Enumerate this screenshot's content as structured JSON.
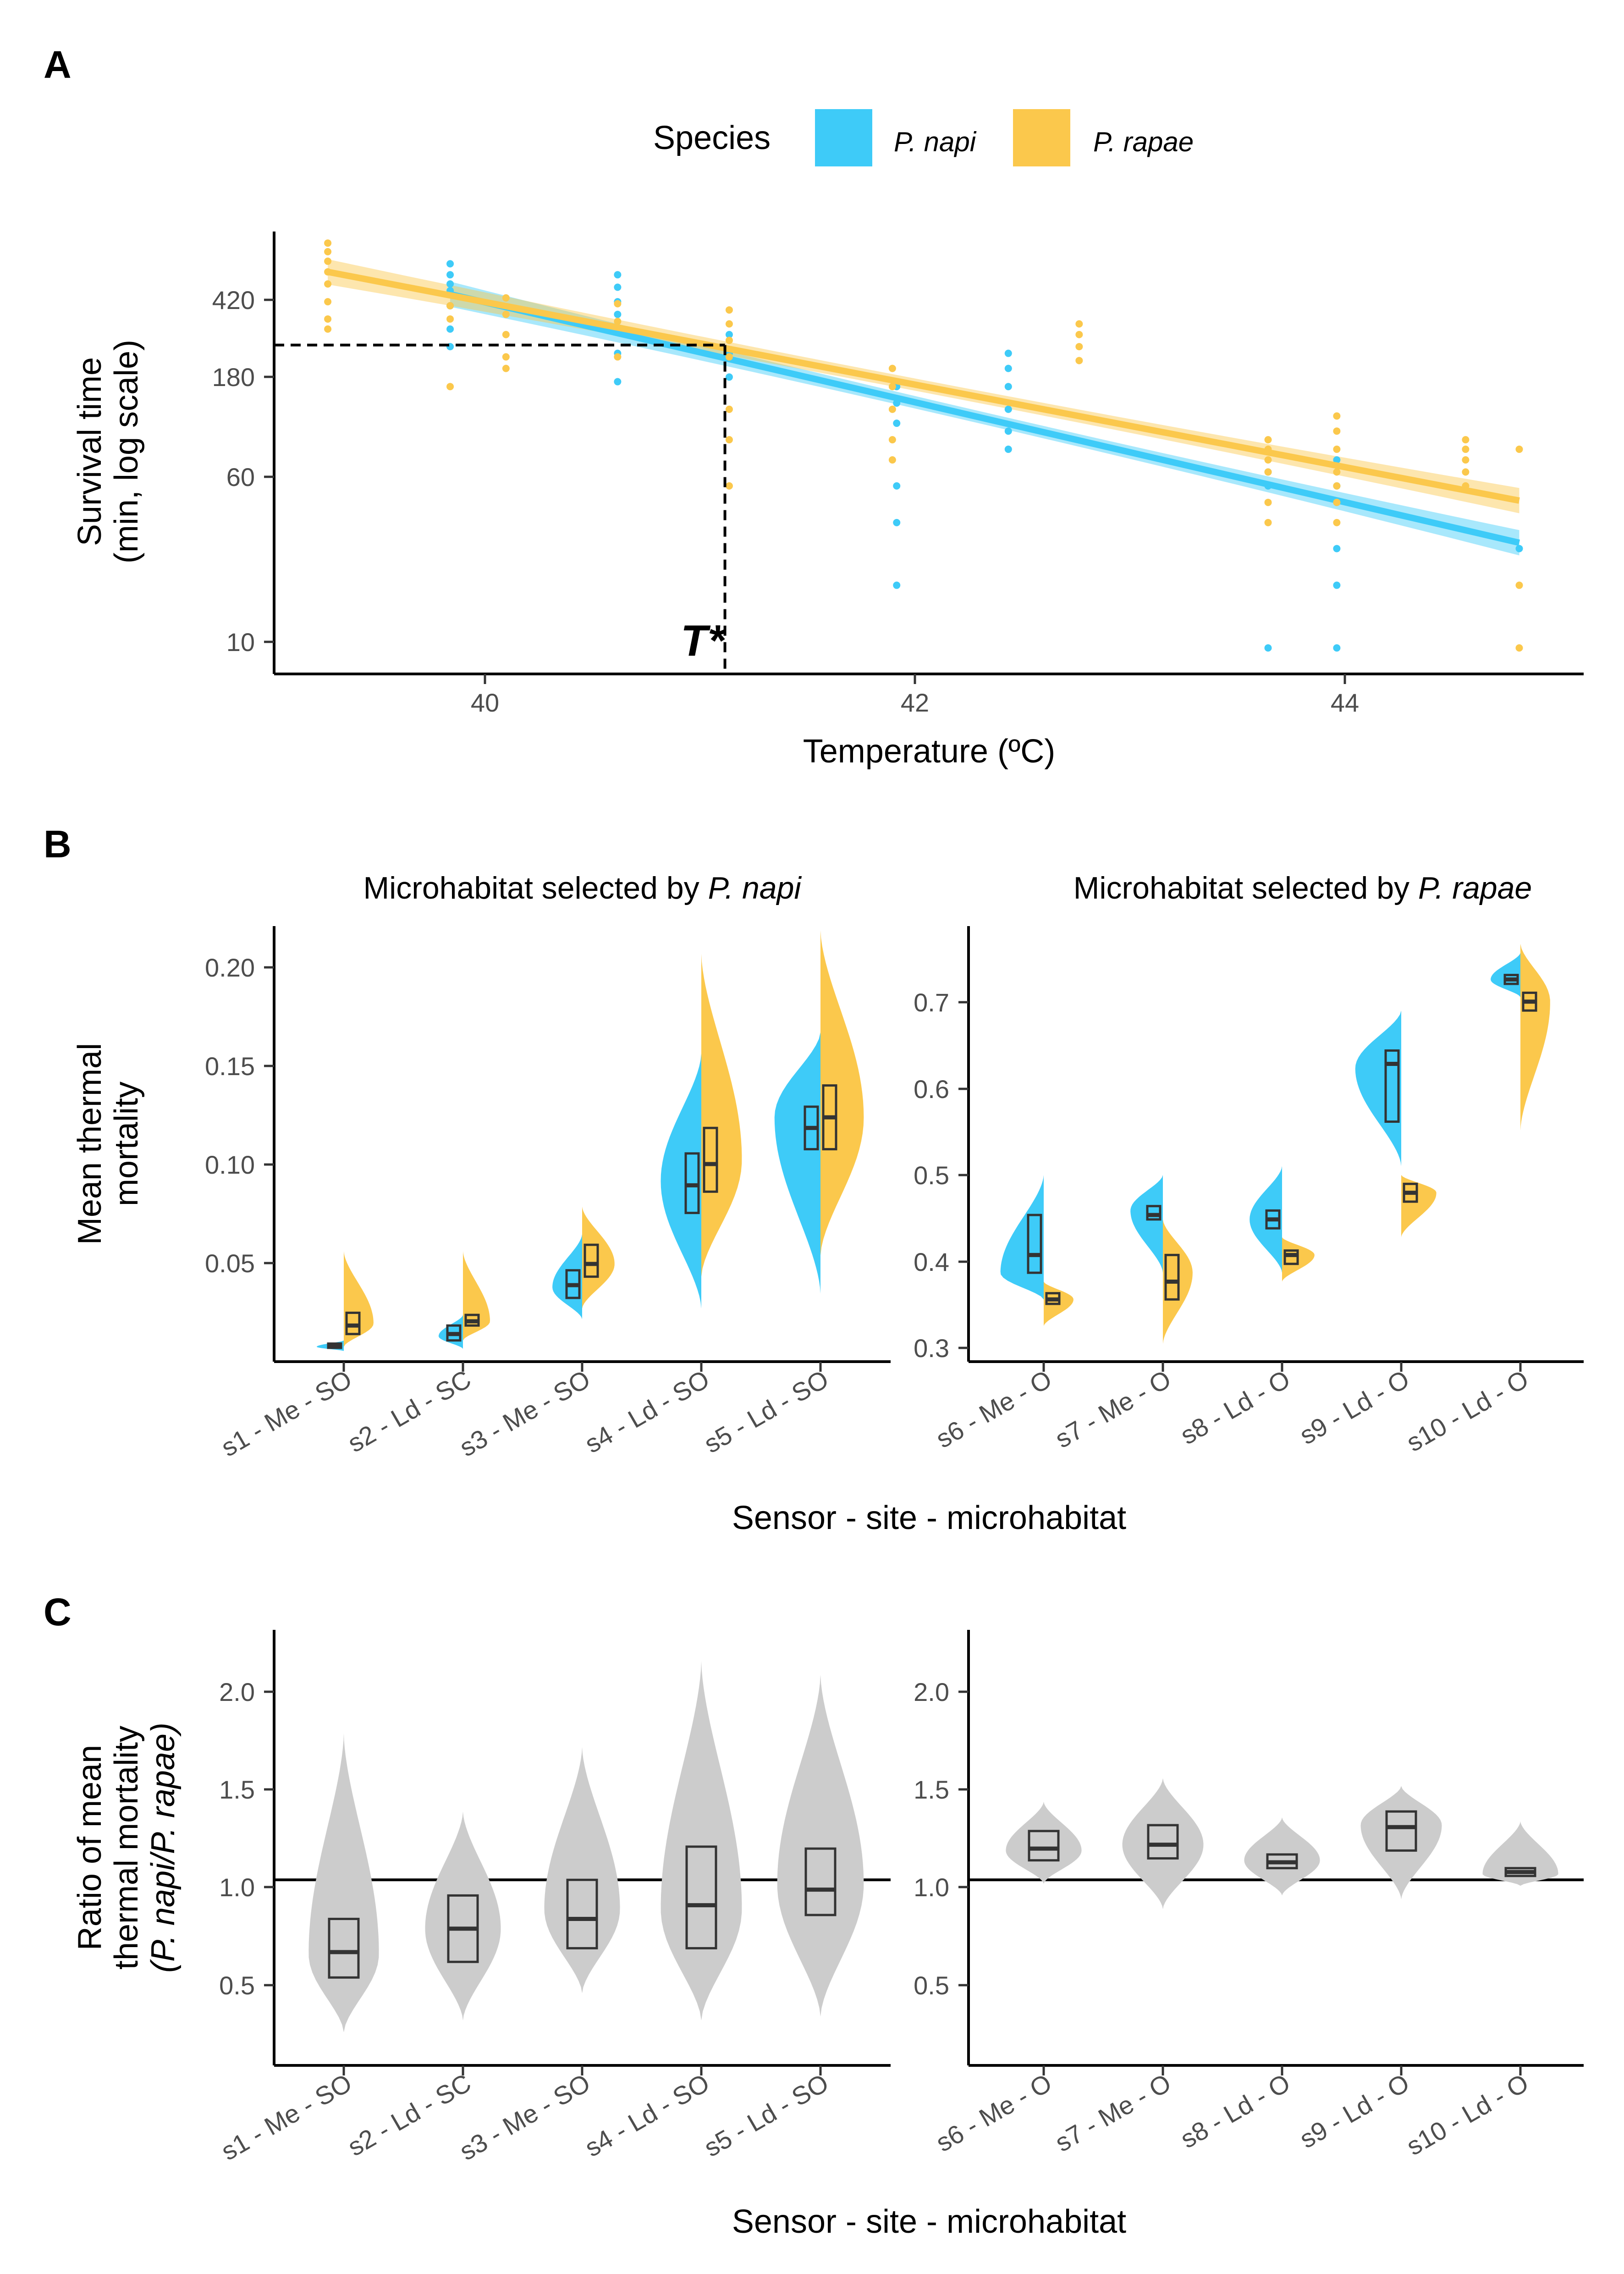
{
  "colors": {
    "napi": "#3ecbf8",
    "rapae": "#fbc84c",
    "ratio": "#cccccc",
    "box": "#333333"
  },
  "panels": {
    "a": "A",
    "b": "B",
    "c": "C"
  },
  "legend": {
    "title": "Species",
    "items": [
      "P. napi",
      "P. rapae"
    ]
  },
  "panelA": {
    "xlabel": "Temperature (ºC)",
    "ylabel_line1": "Survival time",
    "ylabel_line2": "(min, log scale)",
    "tstar": "T*",
    "x_ticks": [
      "40",
      "42",
      "44"
    ],
    "y_ticks": [
      "10",
      "60",
      "180",
      "420"
    ]
  },
  "panelB": {
    "strip_left_prefix": "Microhabitat selected by ",
    "strip_left_species": "P. napi",
    "strip_right_prefix": "Microhabitat selected by ",
    "strip_right_species": "P. rapae",
    "ylabel_line1": "Mean thermal",
    "ylabel_line2": "mortality",
    "xlabel": "Sensor - site - microhabitat",
    "left_y_ticks": [
      "0.05",
      "0.10",
      "0.15",
      "0.20"
    ],
    "right_y_ticks": [
      "0.3",
      "0.4",
      "0.5",
      "0.6",
      "0.7"
    ]
  },
  "panelC": {
    "ylabel_line1": "Ratio of mean",
    "ylabel_line2": "thermal mortality",
    "ylabel_line3": "(P. napi/P. rapae)",
    "xlabel": "Sensor - site - microhabitat",
    "y_ticks": [
      "0.5",
      "1.0",
      "1.5",
      "2.0"
    ]
  },
  "sensors_left": [
    "s1 - Me - SO",
    "s2 - Ld - SC",
    "s3 - Me - SO",
    "s4 - Ld - SO",
    "s5 - Ld - SO"
  ],
  "sensors_right": [
    "s6 - Me - O",
    "s7 - Me - O",
    "s8 - Ld - O",
    "s9 - Ld - O",
    "s10 - Ld - O"
  ],
  "chart_data": [
    {
      "panel": "A",
      "type": "scatter",
      "xlabel": "Temperature (ºC)",
      "ylabel": "Survival time (min, log scale)",
      "y_scale": "log",
      "xlim": [
        39.1,
        45.2
      ],
      "ylim": [
        7.5,
        1000
      ],
      "x_ticks": [
        40,
        42,
        44
      ],
      "y_ticks": [
        10,
        60,
        180,
        420
      ],
      "threshold": {
        "label": "T*",
        "x": 41.2,
        "y": 285
      },
      "series": [
        {
          "name": "P. napi",
          "fit": {
            "x": [
              39.92,
              44.9
            ],
            "y": [
              500,
              32
            ]
          },
          "points": [
            [
              39.92,
              700
            ],
            [
              39.92,
              620
            ],
            [
              39.92,
              560
            ],
            [
              39.92,
              520
            ],
            [
              39.92,
              440
            ],
            [
              39.92,
              340
            ],
            [
              39.92,
              280
            ],
            [
              40.7,
              620
            ],
            [
              40.7,
              540
            ],
            [
              40.7,
              460
            ],
            [
              40.7,
              400
            ],
            [
              40.7,
              330
            ],
            [
              40.7,
              260
            ],
            [
              40.7,
              190
            ],
            [
              41.22,
              320
            ],
            [
              41.22,
              260
            ],
            [
              41.22,
              200
            ],
            [
              42.0,
              180
            ],
            [
              42.0,
              150
            ],
            [
              42.0,
              120
            ],
            [
              42.0,
              60
            ],
            [
              42.0,
              40
            ],
            [
              42.0,
              20
            ],
            [
              42.52,
              260
            ],
            [
              42.52,
              220
            ],
            [
              42.52,
              180
            ],
            [
              42.52,
              140
            ],
            [
              42.52,
              110
            ],
            [
              42.52,
              90
            ],
            [
              43.73,
              70
            ],
            [
              43.73,
              60
            ],
            [
              43.73,
              10
            ],
            [
              44.05,
              80
            ],
            [
              44.05,
              60
            ],
            [
              44.05,
              50
            ],
            [
              44.05,
              30
            ],
            [
              44.05,
              20
            ],
            [
              44.05,
              10
            ],
            [
              44.9,
              30
            ]
          ]
        },
        {
          "name": "P. rapae",
          "fit": {
            "x": [
              39.35,
              44.9
            ],
            "y": [
              640,
              51
            ]
          },
          "points": [
            [
              39.35,
              880
            ],
            [
              39.35,
              800
            ],
            [
              39.35,
              720
            ],
            [
              39.35,
              640
            ],
            [
              39.35,
              560
            ],
            [
              39.35,
              460
            ],
            [
              39.35,
              380
            ],
            [
              39.35,
              340
            ],
            [
              39.92,
              440
            ],
            [
              39.92,
              380
            ],
            [
              39.92,
              180
            ],
            [
              40.18,
              480
            ],
            [
              40.18,
              400
            ],
            [
              40.18,
              320
            ],
            [
              40.18,
              250
            ],
            [
              40.18,
              220
            ],
            [
              40.7,
              450
            ],
            [
              40.7,
              370
            ],
            [
              40.7,
              250
            ],
            [
              41.22,
              420
            ],
            [
              41.22,
              360
            ],
            [
              41.22,
              300
            ],
            [
              41.22,
              250
            ],
            [
              41.22,
              140
            ],
            [
              41.22,
              100
            ],
            [
              41.22,
              60
            ],
            [
              41.98,
              220
            ],
            [
              41.98,
              180
            ],
            [
              41.98,
              140
            ],
            [
              41.98,
              100
            ],
            [
              41.98,
              80
            ],
            [
              42.85,
              360
            ],
            [
              42.85,
              320
            ],
            [
              42.85,
              280
            ],
            [
              42.85,
              240
            ],
            [
              43.73,
              100
            ],
            [
              43.73,
              90
            ],
            [
              43.73,
              80
            ],
            [
              43.73,
              70
            ],
            [
              43.73,
              50
            ],
            [
              43.73,
              40
            ],
            [
              44.05,
              130
            ],
            [
              44.05,
              110
            ],
            [
              44.05,
              90
            ],
            [
              44.05,
              70
            ],
            [
              44.05,
              60
            ],
            [
              44.05,
              50
            ],
            [
              44.05,
              40
            ],
            [
              44.65,
              100
            ],
            [
              44.65,
              90
            ],
            [
              44.65,
              80
            ],
            [
              44.65,
              70
            ],
            [
              44.65,
              60
            ],
            [
              44.9,
              90
            ],
            [
              44.9,
              20
            ],
            [
              44.9,
              10
            ]
          ]
        }
      ]
    },
    {
      "panel": "B-left",
      "type": "violin",
      "title": "Microhabitat selected by P. napi",
      "xlabel": "Sensor - site - microhabitat",
      "ylabel": "Mean thermal mortality",
      "ylim": [
        0.01,
        0.215
      ],
      "y_ticks": [
        0.05,
        0.1,
        0.15,
        0.2
      ],
      "categories": [
        "s1 - Me - SO",
        "s2 - Ld - SC",
        "s3 - Me - SO",
        "s4 - Ld - SO",
        "s5 - Ld - SO"
      ],
      "series": [
        {
          "name": "P. napi",
          "side": "left",
          "ranges": [
            [
              0.015,
              0.02
            ],
            [
              0.016,
              0.032
            ],
            [
              0.03,
              0.07
            ],
            [
              0.035,
              0.155
            ],
            [
              0.042,
              0.165
            ]
          ],
          "modes": [
            0.017,
            0.022,
            0.045,
            0.095,
            0.125
          ],
          "widths": [
            0.5,
            0.45,
            0.55,
            0.75,
            0.85
          ],
          "q1": [
            0.0165,
            0.02,
            0.04,
            0.08,
            0.11
          ],
          "median": [
            0.017,
            0.023,
            0.046,
            0.093,
            0.12
          ],
          "q3": [
            0.0185,
            0.027,
            0.053,
            0.108,
            0.13
          ]
        },
        {
          "name": "P. rapae",
          "side": "right",
          "ranges": [
            [
              0.017,
              0.062
            ],
            [
              0.02,
              0.062
            ],
            [
              0.035,
              0.083
            ],
            [
              0.05,
              0.202
            ],
            [
              0.06,
              0.213
            ]
          ],
          "modes": [
            0.028,
            0.029,
            0.056,
            0.105,
            0.125
          ],
          "widths": [
            0.55,
            0.5,
            0.6,
            0.75,
            0.8
          ],
          "q1": [
            0.023,
            0.027,
            0.05,
            0.09,
            0.11
          ],
          "median": [
            0.027,
            0.029,
            0.056,
            0.103,
            0.125
          ],
          "q3": [
            0.033,
            0.032,
            0.065,
            0.12,
            0.14
          ]
        }
      ]
    },
    {
      "panel": "B-right",
      "type": "violin",
      "title": "Microhabitat selected by P. rapae",
      "xlabel": "Sensor - site - microhabitat",
      "ylabel": "Mean thermal mortality",
      "ylim": [
        0.29,
        0.78
      ],
      "y_ticks": [
        0.3,
        0.4,
        0.5,
        0.6,
        0.7
      ],
      "categories": [
        "s6 - Me - O",
        "s7 - Me - O",
        "s8 - Ld - O",
        "s9 - Ld - O",
        "s10 - Ld - O"
      ],
      "series": [
        {
          "name": "P. napi",
          "side": "left",
          "ranges": [
            [
              0.36,
              0.5
            ],
            [
              0.39,
              0.5
            ],
            [
              0.39,
              0.51
            ],
            [
              0.51,
              0.685
            ],
            [
              0.7,
              0.75
            ]
          ],
          "modes": [
            0.39,
            0.46,
            0.45,
            0.62,
            0.72
          ],
          "widths": [
            0.8,
            0.6,
            0.6,
            0.85,
            0.55
          ],
          "q1": [
            0.39,
            0.45,
            0.44,
            0.56,
            0.715
          ],
          "median": [
            0.41,
            0.455,
            0.45,
            0.625,
            0.72
          ],
          "q3": [
            0.455,
            0.465,
            0.46,
            0.64,
            0.725
          ]
        },
        {
          "name": "P. rapae",
          "side": "right",
          "ranges": [
            [
              0.33,
              0.38
            ],
            [
              0.31,
              0.45
            ],
            [
              0.38,
              0.43
            ],
            [
              0.43,
              0.5
            ],
            [
              0.55,
              0.76
            ]
          ],
          "modes": [
            0.36,
            0.39,
            0.41,
            0.48,
            0.695
          ],
          "widths": [
            0.55,
            0.55,
            0.6,
            0.65,
            0.55
          ],
          "q1": [
            0.355,
            0.36,
            0.4,
            0.47,
            0.685
          ],
          "median": [
            0.36,
            0.38,
            0.41,
            0.48,
            0.695
          ],
          "q3": [
            0.367,
            0.41,
            0.415,
            0.49,
            0.705
          ]
        }
      ]
    },
    {
      "panel": "C",
      "type": "violin",
      "xlabel": "Sensor - site - microhabitat",
      "ylabel": "Ratio of mean thermal mortality (P. napi/P. rapae)",
      "ylim": [
        0.05,
        2.28
      ],
      "y_ticks": [
        0.5,
        1.0,
        1.5,
        2.0
      ],
      "reference_line": 1.0,
      "categories": [
        "s1 - Me - SO",
        "s2 - Ld - SC",
        "s3 - Me - SO",
        "s4 - Ld - SO",
        "s5 - Ld - SO",
        "s6 - Me - O",
        "s7 - Me - O",
        "s8 - Ld - O",
        "s9 - Ld - O",
        "s10 - Ld - O"
      ],
      "ranges": [
        [
          0.22,
          1.75
        ],
        [
          0.28,
          1.35
        ],
        [
          0.42,
          1.68
        ],
        [
          0.28,
          2.12
        ],
        [
          0.3,
          2.05
        ],
        [
          0.98,
          1.4
        ],
        [
          0.85,
          1.52
        ],
        [
          0.92,
          1.32
        ],
        [
          0.9,
          1.48
        ],
        [
          0.97,
          1.3
        ]
      ],
      "modes": [
        0.62,
        0.75,
        0.85,
        0.85,
        0.98,
        1.15,
        1.18,
        1.1,
        1.28,
        1.03
      ],
      "widths": [
        0.65,
        0.7,
        0.7,
        0.75,
        0.8,
        0.7,
        0.75,
        0.7,
        0.75,
        0.7
      ],
      "q1": [
        0.5,
        0.58,
        0.65,
        0.65,
        0.82,
        1.1,
        1.11,
        1.06,
        1.15,
        1.02
      ],
      "median": [
        0.63,
        0.75,
        0.8,
        0.87,
        0.95,
        1.16,
        1.18,
        1.09,
        1.27,
        1.04
      ],
      "q3": [
        0.8,
        0.92,
        1.0,
        1.17,
        1.16,
        1.25,
        1.28,
        1.13,
        1.35,
        1.06
      ]
    }
  ]
}
